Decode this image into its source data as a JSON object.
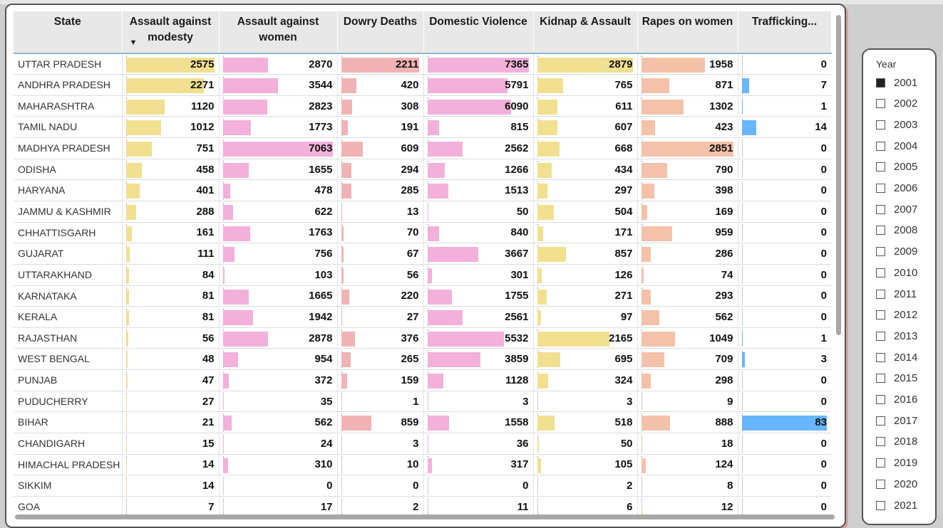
{
  "table": {
    "columns": [
      "State",
      "Assault against modesty",
      "Assault against women",
      "Dowry Deaths",
      "Domestic Violence",
      "Kidnap & Assault",
      "Rapes on women",
      "Trafficking..."
    ],
    "sort_indicator": "▼",
    "bar_colors": [
      "#f1e08f",
      "#f3b0da",
      "#f1b3b5",
      "#f3b0da",
      "#f1e08f",
      "#f4c1a9",
      "#67b6ff"
    ],
    "rows": [
      [
        "UTTAR PRADESH",
        2575,
        2870,
        2211,
        7365,
        2879,
        1958,
        0
      ],
      [
        "ANDHRA PRADESH",
        2271,
        3544,
        420,
        5791,
        765,
        871,
        7
      ],
      [
        "MAHARASHTRA",
        1120,
        2823,
        308,
        6090,
        611,
        1302,
        1
      ],
      [
        "TAMIL NADU",
        1012,
        1773,
        191,
        815,
        607,
        423,
        14
      ],
      [
        "MADHYA PRADESH",
        751,
        7063,
        609,
        2562,
        668,
        2851,
        0
      ],
      [
        "ODISHA",
        458,
        1655,
        294,
        1266,
        434,
        790,
        0
      ],
      [
        "HARYANA",
        401,
        478,
        285,
        1513,
        297,
        398,
        0
      ],
      [
        "JAMMU & KASHMIR",
        288,
        622,
        13,
        50,
        504,
        169,
        0
      ],
      [
        "CHHATTISGARH",
        161,
        1763,
        70,
        840,
        171,
        959,
        0
      ],
      [
        "GUJARAT",
        111,
        756,
        67,
        3667,
        857,
        286,
        0
      ],
      [
        "UTTARAKHAND",
        84,
        103,
        56,
        301,
        126,
        74,
        0
      ],
      [
        "KARNATAKA",
        81,
        1665,
        220,
        1755,
        271,
        293,
        0
      ],
      [
        "KERALA",
        81,
        1942,
        27,
        2561,
        97,
        562,
        0
      ],
      [
        "RAJASTHAN",
        56,
        2878,
        376,
        5532,
        2165,
        1049,
        1
      ],
      [
        "WEST BENGAL",
        48,
        954,
        265,
        3859,
        695,
        709,
        3
      ],
      [
        "PUNJAB",
        47,
        372,
        159,
        1128,
        324,
        298,
        0
      ],
      [
        "PUDUCHERRY",
        27,
        35,
        1,
        3,
        3,
        9,
        0
      ],
      [
        "BIHAR",
        21,
        562,
        859,
        1558,
        518,
        888,
        83
      ],
      [
        "CHANDIGARH",
        15,
        24,
        3,
        36,
        50,
        18,
        0
      ],
      [
        "HIMACHAL PRADESH",
        14,
        310,
        10,
        317,
        105,
        124,
        0
      ],
      [
        "SIKKIM",
        14,
        0,
        0,
        0,
        2,
        8,
        0
      ],
      [
        "GOA",
        7,
        17,
        2,
        11,
        6,
        12,
        0
      ]
    ]
  },
  "slicer": {
    "title": "Year",
    "years": [
      "2001",
      "2002",
      "2003",
      "2004",
      "2005",
      "2006",
      "2007",
      "2008",
      "2009",
      "2010",
      "2011",
      "2012",
      "2013",
      "2014",
      "2015",
      "2016",
      "2017",
      "2018",
      "2019",
      "2020",
      "2021"
    ],
    "selected": [
      "2001"
    ]
  }
}
